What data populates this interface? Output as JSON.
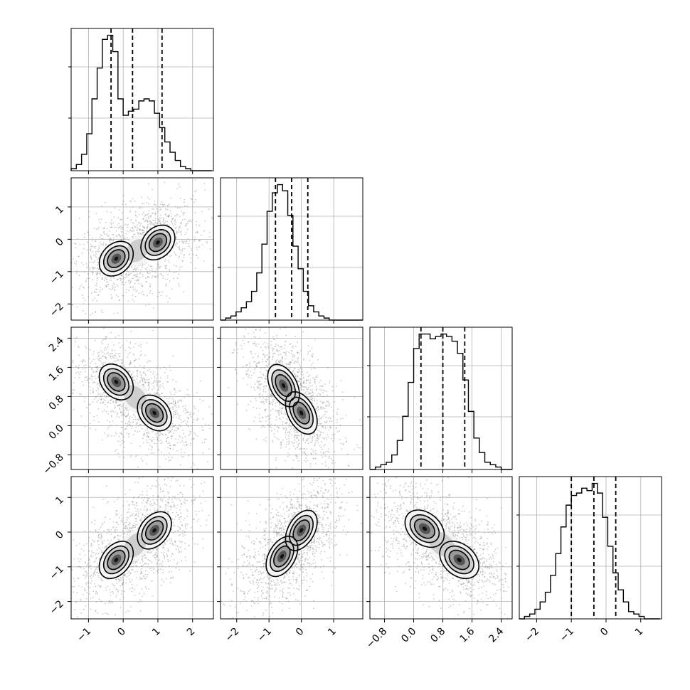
{
  "chart_data": {
    "type": "corner",
    "grid": true,
    "n_params": 4,
    "params": [
      {
        "range": [
          -1.5,
          2.6
        ],
        "ticks": [
          -1,
          0,
          1,
          2
        ],
        "tick_labels": [
          "−1",
          "0",
          "1",
          "2"
        ],
        "quantiles": [
          -0.35,
          0.27,
          1.12
        ],
        "hist_edges_start": -1.5,
        "hist_bin_width": 0.15,
        "hist_counts": [
          1,
          3,
          8,
          18,
          35,
          50,
          64,
          66,
          58,
          35,
          27,
          29,
          30,
          34,
          35,
          34,
          28,
          21,
          14,
          9,
          5,
          2,
          1,
          0,
          0,
          0,
          0
        ]
      },
      {
        "range": [
          -2.5,
          1.9
        ],
        "ticks": [
          -2,
          -1,
          0,
          1
        ],
        "tick_labels": [
          "−2",
          "−1",
          "0",
          "1"
        ],
        "quantiles": [
          -0.8,
          -0.3,
          0.2
        ],
        "hist_edges_start": -2.5,
        "hist_bin_width": 0.16,
        "hist_counts": [
          0,
          1,
          2,
          4,
          6,
          9,
          14,
          23,
          37,
          53,
          62,
          66,
          63,
          51,
          36,
          25,
          14,
          7,
          4,
          2,
          1,
          0,
          0,
          0,
          0,
          0,
          0,
          0
        ]
      },
      {
        "range": [
          -1.2,
          2.7
        ],
        "ticks": [
          -0.8,
          0.0,
          0.8,
          1.6,
          2.4
        ],
        "tick_labels": [
          "−0.8",
          "0.0",
          "0.8",
          "1.6",
          "2.4"
        ],
        "quantiles": [
          0.2,
          0.8,
          1.4
        ],
        "hist_edges_start": -1.2,
        "hist_bin_width": 0.15,
        "hist_counts": [
          0,
          1,
          2,
          3,
          6,
          12,
          22,
          36,
          50,
          56,
          56,
          54,
          55,
          56,
          55,
          53,
          48,
          37,
          24,
          13,
          7,
          3,
          2,
          1,
          0,
          0
        ]
      },
      {
        "range": [
          -2.5,
          1.6
        ],
        "ticks": [
          -2,
          -1,
          0,
          1
        ],
        "tick_labels": [
          "−2",
          "−1",
          "0",
          "1"
        ],
        "quantiles": [
          -1.0,
          -0.35,
          0.28
        ],
        "hist_edges_start": -2.5,
        "hist_bin_width": 0.15,
        "hist_counts": [
          0,
          1,
          2,
          4,
          7,
          11,
          18,
          27,
          38,
          47,
          51,
          52,
          54,
          53,
          56,
          52,
          42,
          30,
          19,
          12,
          7,
          3,
          2,
          1,
          0,
          0,
          0
        ]
      }
    ],
    "pairs": [
      {
        "x": 0,
        "y": 1,
        "peaks": [
          [
            -0.2,
            -0.6
          ],
          [
            1.0,
            -0.1
          ]
        ],
        "cov": [
          [
            0.1,
            0.03
          ],
          [
            0.03,
            0.12
          ]
        ]
      },
      {
        "x": 0,
        "y": 2,
        "peaks": [
          [
            -0.2,
            1.2
          ],
          [
            0.9,
            0.35
          ]
        ],
        "cov": [
          [
            0.1,
            -0.03
          ],
          [
            -0.03,
            0.1
          ]
        ]
      },
      {
        "x": 0,
        "y": 3,
        "peaks": [
          [
            -0.2,
            -0.8
          ],
          [
            0.9,
            0.05
          ]
        ],
        "cov": [
          [
            0.1,
            0.04
          ],
          [
            0.04,
            0.12
          ]
        ]
      },
      {
        "x": 1,
        "y": 2,
        "peaks": [
          [
            -0.55,
            1.1
          ],
          [
            0.0,
            0.35
          ]
        ],
        "cov": [
          [
            0.1,
            -0.05
          ],
          [
            -0.05,
            0.14
          ]
        ]
      },
      {
        "x": 1,
        "y": 3,
        "peaks": [
          [
            -0.6,
            -0.7
          ],
          [
            0.0,
            0.05
          ]
        ],
        "cov": [
          [
            0.1,
            0.05
          ],
          [
            0.05,
            0.14
          ]
        ]
      },
      {
        "x": 2,
        "y": 3,
        "peaks": [
          [
            0.3,
            0.1
          ],
          [
            1.25,
            -0.8
          ]
        ],
        "cov": [
          [
            0.12,
            -0.04
          ],
          [
            -0.04,
            0.12
          ]
        ]
      }
    ]
  }
}
